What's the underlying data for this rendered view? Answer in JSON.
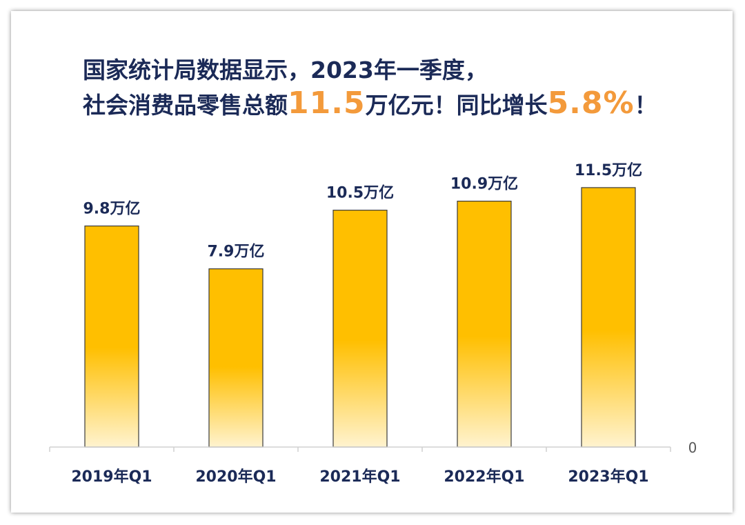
{
  "heading": {
    "line1": "国家统计局数据显示，2023年一季度，",
    "line2_prefix": "社会消费品零售总额",
    "line2_highlight1": "11.5",
    "line2_middle": "万亿元！同比增长",
    "line2_highlight2": "5.8%",
    "line2_suffix": "！"
  },
  "colors": {
    "bar_top": "#ffbf00",
    "bar_bottom": "#fff3cf",
    "text": "#1b2a57",
    "highlight": "#f39a3b",
    "axis": "#d0d0d0"
  },
  "chart_data": {
    "type": "bar",
    "categories": [
      "2019年Q1",
      "2020年Q1",
      "2021年Q1",
      "2022年Q1",
      "2023年Q1"
    ],
    "values": [
      9.8,
      7.9,
      10.5,
      10.9,
      11.5
    ],
    "data_labels": [
      "9.8万亿",
      "7.9万亿",
      "10.5万亿",
      "10.9万亿",
      "11.5万亿"
    ],
    "y_tick_labels": [
      "0"
    ],
    "ylim": [
      0,
      13
    ],
    "grid": false,
    "legend": "none"
  }
}
